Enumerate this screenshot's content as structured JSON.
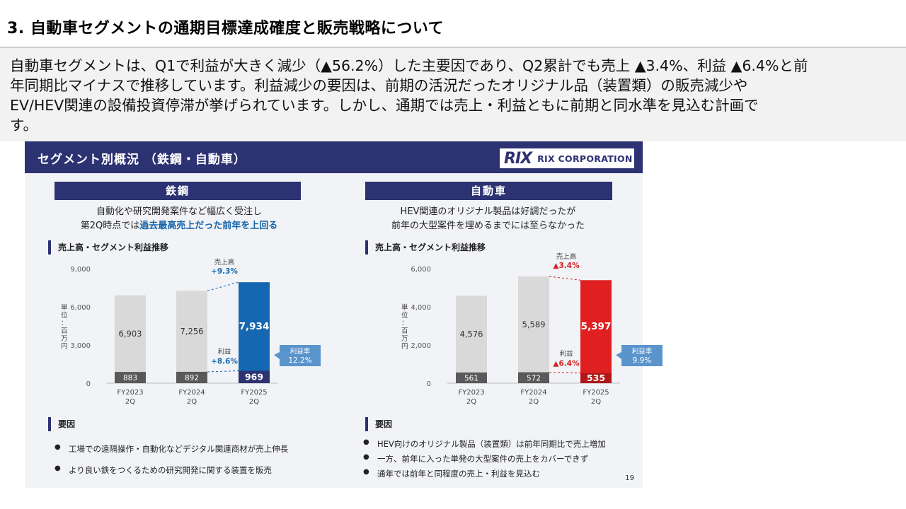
{
  "page": {
    "title": "3. 自動車セグメントの通期目標達成確度と販売戦略について",
    "body_lines": [
      "自動車セグメントは、Q1で利益が大きく減少（▲56.2%）した主要因であり、Q2累計でも売上 ▲3.4%、利益 ▲6.4%と前",
      "年同期比マイナスで推移しています。利益減少の要因は、前期の活況だったオリジナル品（装置類）の販売減少や",
      "EV/HEV関連の設備投資停滞が挙げられています。しかし、通期では売上・利益ともに前期と同水準を見込む計画で",
      "す。"
    ]
  },
  "slide": {
    "header_title": "セグメント別概況 （鉄鋼・自動車）",
    "logo_mark": "RIX",
    "logo_text": "RIX CORPORATION",
    "page_number": "19",
    "left": {
      "segment": "鉄鋼",
      "lead_line1": "自動化や研究開発案件など幅広く受注し",
      "lead_line2_prefix": "第2Q時点では",
      "lead_line2_highlight": "過去最高売上だった前年を上回る",
      "chart_heading": "売上高・セグメント利益推移",
      "factor_heading": "要因",
      "factors": [
        "工場での遠隔操作・自動化などデジタル関連商材が売上伸長",
        "より良い鉄をつくるための研究開発に関する装置を販売"
      ]
    },
    "right": {
      "segment": "自動車",
      "lead_line1": "HEV関連のオリジナル製品は好調だったが",
      "lead_line2": "前年の大型案件を埋めるまでには至らなかった",
      "chart_heading": "売上高・セグメント利益推移",
      "factor_heading": "要因",
      "factors": [
        "HEV向けのオリジナル製品（装置類）は前年同期比で売上増加",
        "一方、前年に入った単発の大型案件の売上をカバーできず",
        "通年では前年と同程度の売上・利益を見込む"
      ]
    }
  },
  "chart_data": [
    {
      "type": "bar",
      "segment": "鉄鋼",
      "title": "売上高・セグメント利益推移",
      "ylabel": "単位：百万円",
      "categories": [
        "FY2023\n2Q",
        "FY2024\n2Q",
        "FY2025\n2Q"
      ],
      "yticks": [
        "9,000",
        "6,000",
        "3,000",
        "0"
      ],
      "ylim": [
        0,
        9000
      ],
      "series": [
        {
          "name": "売上高",
          "values": [
            6903,
            7256,
            7934
          ],
          "labels": [
            "6,903",
            "7,256",
            "7,934"
          ]
        },
        {
          "name": "利益",
          "values": [
            883,
            892,
            969
          ],
          "labels": [
            "883",
            "892",
            "969"
          ]
        }
      ],
      "annotations": {
        "sales_growth_label": "売上高",
        "sales_growth": "+9.3%",
        "profit_growth_label": "利益",
        "profit_growth": "+8.6%",
        "margin_label": "利益率",
        "margin": "12.2%"
      },
      "colors": {
        "past_sales": "#d9d9d9",
        "current_sales": "#1467b0",
        "past_profit": "#595959",
        "current_profit": "#2d3272",
        "growth_text": "#1467b0",
        "callout": "#5a94cc"
      }
    },
    {
      "type": "bar",
      "segment": "自動車",
      "title": "売上高・セグメント利益推移",
      "ylabel": "単位：百万円",
      "categories": [
        "FY2023\n2Q",
        "FY2024\n2Q",
        "FY2025\n2Q"
      ],
      "yticks": [
        "6,000",
        "4,000",
        "2,000",
        "0"
      ],
      "ylim": [
        0,
        6000
      ],
      "series": [
        {
          "name": "売上高",
          "values": [
            4576,
            5589,
            5397
          ],
          "labels": [
            "4,576",
            "5,589",
            "5,397"
          ]
        },
        {
          "name": "利益",
          "values": [
            561,
            572,
            535
          ],
          "labels": [
            "561",
            "572",
            "535"
          ]
        }
      ],
      "annotations": {
        "sales_growth_label": "売上高",
        "sales_growth": "▲3.4%",
        "profit_growth_label": "利益",
        "profit_growth": "▲6.4%",
        "margin_label": "利益率",
        "margin": "9.9%"
      },
      "colors": {
        "past_sales": "#d9d9d9",
        "current_sales": "#e02020",
        "past_profit": "#595959",
        "current_profit": "#b01818",
        "growth_text": "#d42020",
        "callout": "#5a94cc"
      }
    }
  ]
}
